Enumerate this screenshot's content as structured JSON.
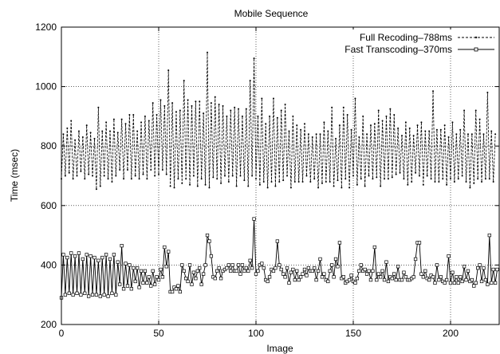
{
  "chart_data": {
    "type": "line",
    "title": "Mobile Sequence",
    "xlabel": "Image",
    "ylabel": "Time (msec)",
    "xlim": [
      0,
      225
    ],
    "ylim": [
      200,
      1200
    ],
    "xticks": [
      0,
      50,
      100,
      150,
      200
    ],
    "yticks": [
      200,
      400,
      600,
      800,
      1000,
      1200
    ],
    "grid": true,
    "legend_position": "top-right",
    "series": [
      {
        "name": "Full Recoding–788ms",
        "style": "dashed",
        "marker": "dot",
        "color": "#000000",
        "values": [
          690,
          840,
          700,
          860,
          710,
          885,
          690,
          820,
          700,
          850,
          715,
          830,
          690,
          870,
          705,
          845,
          700,
          825,
          655,
          930,
          665,
          850,
          700,
          880,
          690,
          850,
          680,
          890,
          700,
          845,
          720,
          890,
          690,
          875,
          720,
          905,
          690,
          905,
          700,
          850,
          690,
          880,
          705,
          900,
          690,
          885,
          720,
          945,
          700,
          905,
          705,
          955,
          720,
          935,
          705,
          1055,
          665,
          945,
          660,
          915,
          690,
          920,
          675,
          1020,
          690,
          955,
          670,
          935,
          700,
          950,
          665,
          950,
          690,
          910,
          670,
          1115,
          660,
          945,
          695,
          965,
          690,
          940,
          675,
          935,
          700,
          900,
          680,
          920,
          700,
          930,
          665,
          925,
          700,
          900,
          685,
          925,
          665,
          1020,
          700,
          1095,
          690,
          900,
          670,
          960,
          680,
          875,
          660,
          900,
          680,
          960,
          665,
          895,
          680,
          920,
          685,
          940,
          700,
          850,
          660,
          900,
          680,
          870,
          680,
          855,
          680,
          875,
          700,
          840,
          680,
          830,
          690,
          840,
          660,
          840,
          675,
          880,
          680,
          850,
          680,
          930,
          665,
          825,
          685,
          870,
          660,
          930,
          690,
          905,
          660,
          855,
          700,
          960,
          670,
          830,
          690,
          900,
          665,
          840,
          700,
          870,
          690,
          875,
          695,
          920,
          665,
          885,
          690,
          900,
          690,
          925,
          695,
          905,
          705,
          860,
          710,
          835,
          690,
          880,
          670,
          860,
          680,
          835,
          710,
          870,
          700,
          880,
          670,
          850,
          700,
          850,
          690,
          985,
          680,
          855,
          680,
          855,
          690,
          870,
          670,
          830,
          690,
          880,
          680,
          840,
          690,
          855,
          700,
          920,
          680,
          840,
          660,
          840,
          675,
          920,
          690,
          890,
          680,
          840,
          690,
          980,
          690,
          850,
          680,
          840
        ]
      },
      {
        "name": "Fast Transcoding–370ms",
        "style": "solid",
        "marker": "square",
        "color": "#000000",
        "values": [
          290,
          435,
          300,
          425,
          305,
          440,
          300,
          430,
          305,
          440,
          300,
          420,
          305,
          435,
          295,
          430,
          300,
          425,
          300,
          415,
          295,
          425,
          300,
          435,
          295,
          420,
          305,
          435,
          300,
          410,
          335,
          465,
          320,
          405,
          330,
          400,
          320,
          390,
          345,
          390,
          325,
          380,
          340,
          380,
          340,
          360,
          330,
          380,
          335,
          360,
          350,
          385,
          360,
          460,
          395,
          445,
          310,
          310,
          325,
          320,
          330,
          310,
          400,
          380,
          355,
          345,
          400,
          335,
          375,
          355,
          380,
          390,
          335,
          370,
          400,
          500,
          480,
          430,
          360,
          355,
          380,
          390,
          355,
          380,
          385,
          390,
          400,
          380,
          400,
          380,
          380,
          400,
          370,
          400,
          380,
          390,
          380,
          415,
          390,
          555,
          370,
          380,
          400,
          405,
          390,
          350,
          345,
          360,
          385,
          380,
          390,
          480,
          400,
          385,
          370,
          360,
          390,
          340,
          375,
          385,
          350,
          380,
          350,
          360,
          370,
          385,
          365,
          390,
          380,
          380,
          390,
          350,
          380,
          420,
          360,
          370,
          350,
          345,
          380,
          400,
          360,
          420,
          395,
          475,
          355,
          360,
          340,
          345,
          350,
          365,
          345,
          340,
          355,
          380,
          400,
          380,
          385,
          370,
          380,
          350,
          380,
          460,
          350,
          370,
          360,
          380,
          350,
          410,
          345,
          360,
          355,
          370,
          350,
          395,
          350,
          350,
          375,
          360,
          350,
          350,
          355,
          360,
          420,
          475,
          475,
          370,
          360,
          380,
          355,
          350,
          365,
          360,
          340,
          400,
          350,
          360,
          345,
          340,
          350,
          430,
          340,
          375,
          340,
          360,
          340,
          360,
          345,
          395,
          350,
          380,
          345,
          350,
          330,
          340,
          390,
          400,
          345,
          390,
          350,
          335,
          500,
          340,
          385,
          340,
          385
        ]
      }
    ]
  },
  "colors": {
    "background": "#ffffff",
    "grid": "#000000",
    "axis": "#000000"
  }
}
